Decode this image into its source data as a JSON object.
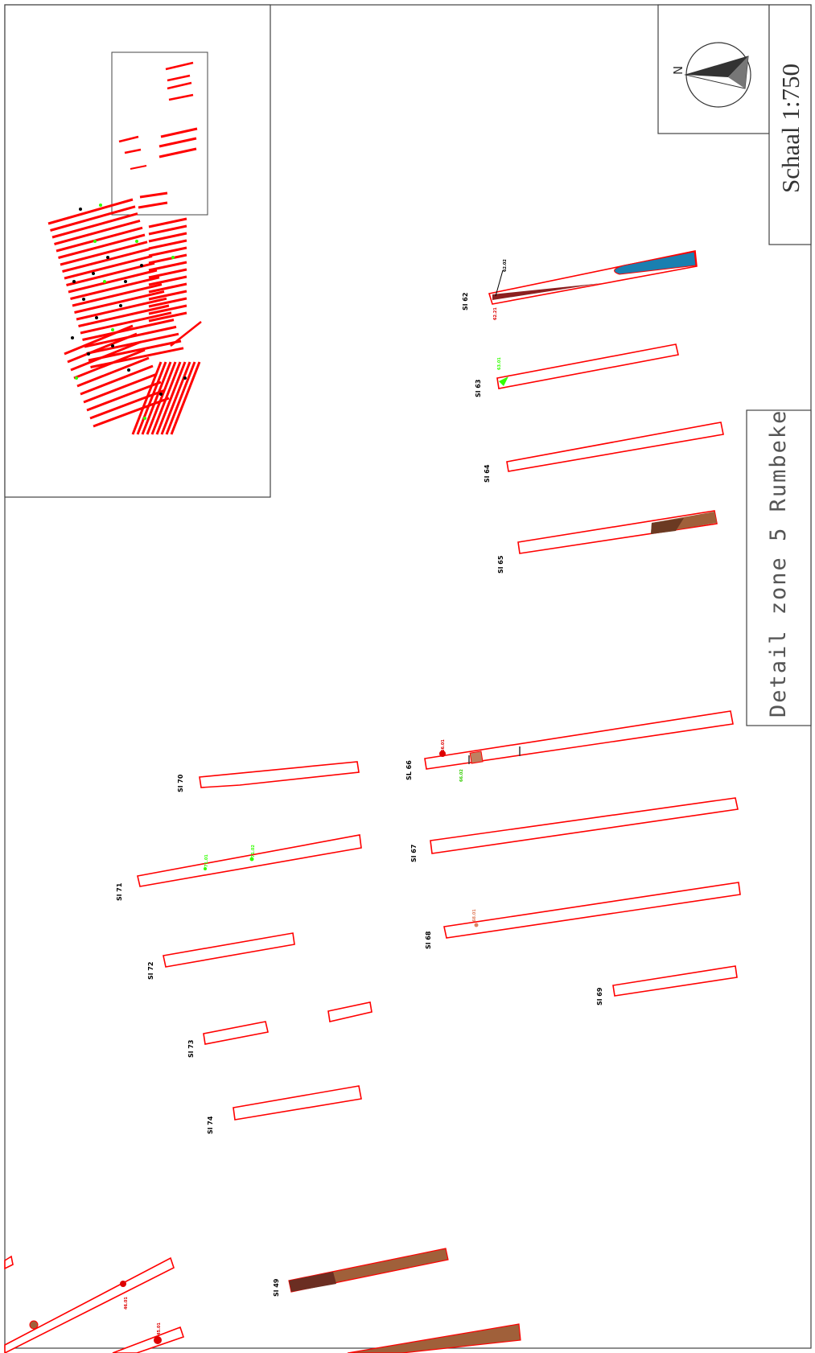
{
  "title": "Detail zone 5 Rumbeke",
  "scale": "Schaal 1:750",
  "north_label": "N",
  "colors": {
    "trench_outline": "#ff0000",
    "fill_brown": "#a0603a",
    "fill_dark_brown": "#7a3a2a",
    "fill_blue": "#1a7fb0",
    "marker_green": "#33ff00",
    "marker_red": "#dd0000"
  },
  "trenches": [
    {
      "label": "Sl 62",
      "markers": [
        "62.02",
        "62.21"
      ]
    },
    {
      "label": "Sl 63",
      "markers": [
        "63.01"
      ]
    },
    {
      "label": "Sl 64",
      "markers": []
    },
    {
      "label": "Sl 65",
      "markers": []
    },
    {
      "label": "SL 66",
      "markers": [
        "66.01",
        "66.02"
      ]
    },
    {
      "label": "Sl 67",
      "markers": []
    },
    {
      "label": "Sl 68",
      "markers": [
        "68.01"
      ]
    },
    {
      "label": "Sl 69",
      "markers": []
    },
    {
      "label": "Sl 70",
      "markers": []
    },
    {
      "label": "Sl 71",
      "markers": [
        "71.01",
        "71.02"
      ]
    },
    {
      "label": "Sl 72",
      "markers": []
    },
    {
      "label": "Sl 73",
      "markers": []
    },
    {
      "label": "Sl 74",
      "markers": []
    },
    {
      "label": "Sl 49",
      "markers": []
    },
    {
      "label": "",
      "markers": [
        "46.01"
      ]
    },
    {
      "label": "",
      "markers": [
        "45.01"
      ]
    }
  ]
}
